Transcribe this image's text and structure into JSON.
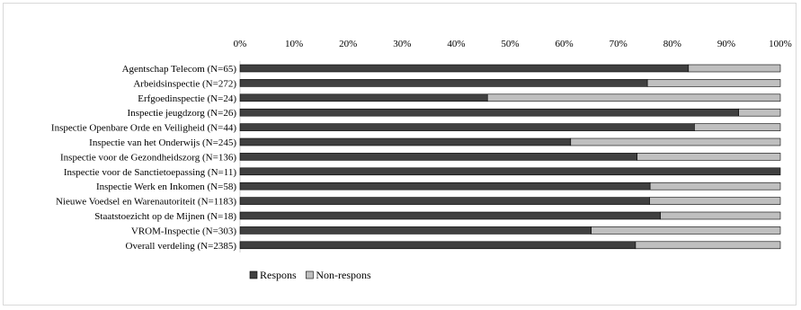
{
  "chart_data": {
    "type": "bar",
    "orientation": "horizontal",
    "stacked": true,
    "percent_stacked": true,
    "title": "",
    "xlabel": "",
    "ylabel": "",
    "xlim": [
      0,
      100
    ],
    "x_ticks": [
      "0%",
      "10%",
      "20%",
      "30%",
      "40%",
      "50%",
      "60%",
      "70%",
      "80%",
      "90%",
      "100%"
    ],
    "grid": false,
    "legend_position": "bottom",
    "categories": [
      "Agentschap Telecom (N=65)",
      "Arbeidsinspectie (N=272)",
      "Erfgoedinspectie (N=24)",
      "Inspectie jeugdzorg (N=26)",
      "Inspectie Openbare Orde en Veiligheid (N=44)",
      "Inspectie van het Onderwijs (N=245)",
      "Inspectie voor de Gezondheidszorg (N=136)",
      "Inspectie voor de Sanctietoepassing (N=11)",
      "Inspectie Werk en Inkomen (N=58)",
      "Nieuwe Voedsel en Warenautoriteit (N=1183)",
      "Staatstoezicht op de Mijnen (N=18)",
      "VROM-Inspectie (N=303)",
      "Overall verdeling (N=2385)"
    ],
    "series": [
      {
        "name": "Respons",
        "color": "#404040",
        "values": [
          83,
          75.4,
          45.8,
          92.3,
          84.1,
          61.2,
          73.5,
          100,
          75.9,
          75.8,
          77.8,
          65,
          73.2
        ]
      },
      {
        "name": "Non-respons",
        "color": "#bfbfbf",
        "values": [
          17,
          24.6,
          54.2,
          7.7,
          15.9,
          38.8,
          26.5,
          0,
          24.1,
          24.2,
          22.2,
          35,
          26.8
        ]
      }
    ]
  }
}
